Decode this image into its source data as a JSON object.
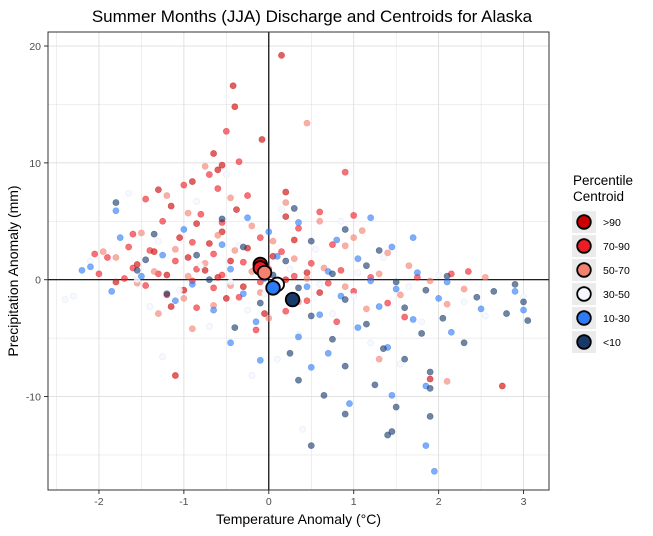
{
  "chart_data": {
    "type": "scatter",
    "title": "Summer Months (JJA) Discharge and Centroids for Alaska",
    "xlabel": "Temperature Anomaly (°C)",
    "ylabel": "Precipitation Anomaly (mm)",
    "xlim": [
      -2.6,
      3.3
    ],
    "ylim": [
      -18.0,
      21.2
    ],
    "xticks": [
      -2,
      -1,
      0,
      1,
      2,
      3
    ],
    "yticks": [
      -10,
      0,
      10,
      20
    ],
    "grid": true,
    "reference_lines": {
      "x": 0,
      "y": 0
    },
    "legend": {
      "title": "Percentile\nCentroid",
      "placement": "right",
      "entries": [
        {
          "label": ">90",
          "color": "#cc0000"
        },
        {
          "label": "70-90",
          "color": "#ee1c25"
        },
        {
          "label": "50-70",
          "color": "#f4806f"
        },
        {
          "label": "30-50",
          "color": "#f5f8ff"
        },
        {
          "label": "10-30",
          "color": "#2e7bf6"
        },
        {
          "label": "<10",
          "color": "#173a6b"
        }
      ]
    },
    "series": [
      {
        "name": ">90",
        "color": "#cc0000",
        "centroid": {
          "x": -0.1,
          "y": 1.3
        },
        "points": [
          [
            0.15,
            19.2
          ],
          [
            -0.42,
            16.6
          ],
          [
            -0.4,
            14.8
          ],
          [
            -0.08,
            12.0
          ],
          [
            -0.55,
            9.8
          ],
          [
            -0.6,
            9.4
          ],
          [
            -0.9,
            8.4
          ],
          [
            -1.3,
            7.7
          ],
          [
            -1.15,
            6.3
          ],
          [
            -0.38,
            6.0
          ],
          [
            0.2,
            5.4
          ],
          [
            -0.85,
            4.8
          ],
          [
            -0.55,
            4.1
          ],
          [
            -1.05,
            3.6
          ],
          [
            -0.7,
            3.1
          ],
          [
            -0.25,
            2.7
          ],
          [
            -1.35,
            2.4
          ],
          [
            0.05,
            2.0
          ],
          [
            -0.95,
            1.9
          ],
          [
            -0.45,
            1.6
          ],
          [
            -1.55,
            1.3
          ],
          [
            -0.15,
            1.0
          ],
          [
            -0.75,
            0.8
          ],
          [
            0.45,
            0.6
          ],
          [
            -1.2,
            0.4
          ],
          [
            -0.6,
            0.2
          ],
          [
            0.2,
            0.0
          ],
          [
            -1.8,
            -0.2
          ],
          [
            -0.3,
            -0.6
          ],
          [
            -1.0,
            -0.9
          ],
          [
            0.6,
            -1.1
          ],
          [
            -0.5,
            -1.6
          ],
          [
            -1.15,
            -2.3
          ],
          [
            -0.05,
            -2.9
          ],
          [
            0.3,
            3.4
          ],
          [
            -1.1,
            -8.2
          ],
          [
            2.75,
            -9.1
          ],
          [
            1.9,
            -8.5
          ],
          [
            0.2,
            7.5
          ],
          [
            -0.65,
            10.8
          ]
        ]
      },
      {
        "name": "70-90",
        "color": "#ee1c25",
        "centroid": {
          "x": -0.1,
          "y": 1.0
        },
        "points": [
          [
            -0.5,
            12.7
          ],
          [
            -0.35,
            10.1
          ],
          [
            -0.7,
            9.0
          ],
          [
            -1.0,
            8.1
          ],
          [
            -1.45,
            6.9
          ],
          [
            0.9,
            9.2
          ],
          [
            -0.25,
            7.2
          ],
          [
            -0.8,
            5.6
          ],
          [
            -1.25,
            5.0
          ],
          [
            0.35,
            4.4
          ],
          [
            -0.55,
            4.9
          ],
          [
            -1.6,
            3.9
          ],
          [
            -0.9,
            3.2
          ],
          [
            -0.1,
            3.6
          ],
          [
            0.75,
            3.0
          ],
          [
            -1.4,
            2.5
          ],
          [
            -0.65,
            2.2
          ],
          [
            0.15,
            2.4
          ],
          [
            -1.9,
            1.9
          ],
          [
            -1.1,
            1.6
          ],
          [
            -0.3,
            1.5
          ],
          [
            0.5,
            1.4
          ],
          [
            -1.6,
            1.0
          ],
          [
            -0.85,
            0.9
          ],
          [
            0.0,
            0.9
          ],
          [
            0.85,
            0.8
          ],
          [
            -2.0,
            0.5
          ],
          [
            -1.3,
            0.5
          ],
          [
            -0.55,
            0.4
          ],
          [
            0.3,
            0.3
          ],
          [
            1.2,
            0.2
          ],
          [
            -1.7,
            0.1
          ],
          [
            -0.9,
            -0.1
          ],
          [
            -0.1,
            -0.2
          ],
          [
            0.7,
            -0.3
          ],
          [
            -1.45,
            -0.5
          ],
          [
            -0.65,
            -0.7
          ],
          [
            0.1,
            -0.9
          ],
          [
            1.0,
            -1.0
          ],
          [
            -1.2,
            -1.3
          ],
          [
            -0.35,
            -1.5
          ],
          [
            0.45,
            -1.8
          ],
          [
            1.4,
            -2.0
          ],
          [
            -0.85,
            -2.4
          ],
          [
            0.2,
            -2.7
          ],
          [
            1.6,
            -3.2
          ],
          [
            0.8,
            -3.6
          ],
          [
            -0.15,
            -4.3
          ],
          [
            -1.65,
            2.8
          ],
          [
            -2.05,
            2.2
          ],
          [
            0.6,
            5.8
          ],
          [
            1.0,
            5.5
          ],
          [
            -0.6,
            7.8
          ],
          [
            2.15,
            0.5
          ],
          [
            1.75,
            0.2
          ],
          [
            2.35,
            0.7
          ]
        ]
      },
      {
        "name": "50-70",
        "color": "#f4806f",
        "centroid": {
          "x": -0.05,
          "y": 0.6
        },
        "points": [
          [
            0.45,
            13.4
          ],
          [
            -0.75,
            9.7
          ],
          [
            -1.2,
            7.2
          ],
          [
            -0.45,
            7.0
          ],
          [
            0.2,
            6.6
          ],
          [
            -0.95,
            5.7
          ],
          [
            0.6,
            5.0
          ],
          [
            -0.2,
            4.6
          ],
          [
            1.1,
            4.2
          ],
          [
            -1.5,
            4.0
          ],
          [
            -0.6,
            3.8
          ],
          [
            0.05,
            3.3
          ],
          [
            0.9,
            2.9
          ],
          [
            -1.1,
            2.6
          ],
          [
            -0.4,
            2.5
          ],
          [
            1.4,
            2.3
          ],
          [
            -1.8,
            1.9
          ],
          [
            0.3,
            1.8
          ],
          [
            -0.75,
            1.4
          ],
          [
            1.65,
            1.2
          ],
          [
            0.65,
            1.0
          ],
          [
            -1.35,
            0.7
          ],
          [
            -0.2,
            0.7
          ],
          [
            1.3,
            0.5
          ],
          [
            -0.95,
            0.3
          ],
          [
            0.45,
            0.1
          ],
          [
            1.9,
            -0.1
          ],
          [
            -1.55,
            -0.3
          ],
          [
            -0.45,
            -0.5
          ],
          [
            0.9,
            -0.6
          ],
          [
            -0.1,
            -1.1
          ],
          [
            1.55,
            -1.3
          ],
          [
            -1.0,
            -1.6
          ],
          [
            0.35,
            -1.9
          ],
          [
            -0.65,
            -2.2
          ],
          [
            1.15,
            -2.5
          ],
          [
            -1.3,
            -2.9
          ],
          [
            0.0,
            -3.3
          ],
          [
            2.1,
            -2.1
          ],
          [
            -0.9,
            -4.2
          ],
          [
            2.3,
            -0.8
          ],
          [
            2.55,
            0.2
          ],
          [
            1.0,
            3.6
          ],
          [
            -1.95,
            2.4
          ],
          [
            2.1,
            -8.7
          ],
          [
            1.3,
            -6.8
          ]
        ]
      },
      {
        "name": "30-50",
        "color": "#f5f8ff",
        "centroid": {
          "x": 0.1,
          "y": -0.4
        },
        "points": [
          [
            -1.65,
            7.4
          ],
          [
            -0.85,
            6.7
          ],
          [
            0.15,
            6.0
          ],
          [
            0.85,
            5.0
          ],
          [
            -1.3,
            3.3
          ],
          [
            -0.35,
            2.9
          ],
          [
            0.55,
            2.6
          ],
          [
            1.35,
            1.9
          ],
          [
            -2.1,
            1.6
          ],
          [
            -0.8,
            1.2
          ],
          [
            0.25,
            0.9
          ],
          [
            1.05,
            0.6
          ],
          [
            2.0,
            0.4
          ],
          [
            -1.55,
            0.0
          ],
          [
            -0.45,
            -0.2
          ],
          [
            0.6,
            -0.4
          ],
          [
            1.65,
            -0.6
          ],
          [
            -2.3,
            -1.4
          ],
          [
            -1.05,
            -0.9
          ],
          [
            -0.05,
            -1.2
          ],
          [
            1.0,
            -1.4
          ],
          [
            2.3,
            -1.9
          ],
          [
            -1.4,
            -2.3
          ],
          [
            -0.25,
            -2.6
          ],
          [
            0.75,
            -2.9
          ],
          [
            1.8,
            -3.6
          ],
          [
            -0.7,
            -4.0
          ],
          [
            0.35,
            -4.7
          ],
          [
            1.2,
            -5.4
          ],
          [
            -1.25,
            -6.6
          ],
          [
            0.1,
            -6.8
          ],
          [
            2.55,
            -3.1
          ],
          [
            3.0,
            -1.5
          ],
          [
            0.4,
            -12.8
          ],
          [
            -0.2,
            -8.2
          ],
          [
            1.55,
            -7.2
          ],
          [
            -2.4,
            -1.7
          ],
          [
            -0.5,
            9.0
          ]
        ]
      },
      {
        "name": "10-30",
        "color": "#2e7bf6",
        "centroid": {
          "x": 0.05,
          "y": -0.7
        },
        "points": [
          [
            -1.8,
            5.9
          ],
          [
            -0.25,
            5.3
          ],
          [
            0.35,
            4.9
          ],
          [
            1.2,
            5.3
          ],
          [
            -1.0,
            4.3
          ],
          [
            0.0,
            4.1
          ],
          [
            -1.75,
            3.6
          ],
          [
            0.8,
            3.4
          ],
          [
            -0.55,
            3.0
          ],
          [
            1.45,
            2.8
          ],
          [
            -1.25,
            2.1
          ],
          [
            0.1,
            2.0
          ],
          [
            1.05,
            1.8
          ],
          [
            -2.1,
            1.1
          ],
          [
            -0.45,
            0.9
          ],
          [
            0.7,
            0.7
          ],
          [
            1.75,
            0.6
          ],
          [
            -1.5,
            0.3
          ],
          [
            -0.05,
            0.1
          ],
          [
            1.2,
            -0.1
          ],
          [
            2.1,
            -0.2
          ],
          [
            -0.9,
            -0.4
          ],
          [
            0.45,
            -0.6
          ],
          [
            1.5,
            -0.8
          ],
          [
            -1.85,
            -1.0
          ],
          [
            -0.3,
            -1.2
          ],
          [
            0.85,
            -1.4
          ],
          [
            2.0,
            -1.6
          ],
          [
            -1.1,
            -1.8
          ],
          [
            0.25,
            -2.0
          ],
          [
            1.3,
            -2.3
          ],
          [
            2.5,
            -2.5
          ],
          [
            -0.65,
            -2.6
          ],
          [
            0.6,
            -3.0
          ],
          [
            1.7,
            -3.4
          ],
          [
            -0.15,
            -3.6
          ],
          [
            1.05,
            -4.1
          ],
          [
            2.15,
            -4.5
          ],
          [
            0.35,
            -4.9
          ],
          [
            -0.45,
            -5.4
          ],
          [
            1.4,
            -5.8
          ],
          [
            0.7,
            -6.3
          ],
          [
            -0.1,
            -6.9
          ],
          [
            0.5,
            -7.5
          ],
          [
            1.85,
            -9.1
          ],
          [
            1.85,
            -14.2
          ],
          [
            1.95,
            -16.4
          ],
          [
            1.45,
            -9.9
          ],
          [
            3.0,
            -2.6
          ],
          [
            2.9,
            -1.0
          ],
          [
            1.7,
            3.6
          ],
          [
            -2.2,
            0.8
          ],
          [
            0.95,
            -10.6
          ]
        ]
      },
      {
        "name": "<10",
        "color": "#173a6b",
        "centroid": {
          "x": 0.28,
          "y": -1.7
        },
        "points": [
          [
            -1.8,
            6.6
          ],
          [
            0.3,
            6.1
          ],
          [
            -0.55,
            5.2
          ],
          [
            0.9,
            4.3
          ],
          [
            -1.35,
            3.9
          ],
          [
            0.5,
            3.3
          ],
          [
            -0.3,
            2.8
          ],
          [
            1.3,
            2.5
          ],
          [
            -0.85,
            2.1
          ],
          [
            0.2,
            1.6
          ],
          [
            1.15,
            1.2
          ],
          [
            -1.55,
            0.8
          ],
          [
            0.75,
            0.5
          ],
          [
            2.1,
            0.3
          ],
          [
            -0.7,
            0.0
          ],
          [
            1.5,
            -0.2
          ],
          [
            2.9,
            -0.4
          ],
          [
            0.35,
            -0.7
          ],
          [
            1.85,
            -0.9
          ],
          [
            -1.2,
            -1.2
          ],
          [
            2.45,
            -1.5
          ],
          [
            0.9,
            -1.7
          ],
          [
            -0.1,
            -2.0
          ],
          [
            1.6,
            -2.4
          ],
          [
            2.8,
            -2.9
          ],
          [
            0.5,
            -3.1
          ],
          [
            2.05,
            -3.3
          ],
          [
            1.15,
            -3.8
          ],
          [
            -0.4,
            -4.1
          ],
          [
            1.8,
            -4.6
          ],
          [
            0.75,
            -5.1
          ],
          [
            2.3,
            -5.4
          ],
          [
            1.35,
            -5.9
          ],
          [
            0.25,
            -6.3
          ],
          [
            1.6,
            -6.8
          ],
          [
            0.9,
            -7.4
          ],
          [
            1.9,
            -7.9
          ],
          [
            0.35,
            -8.6
          ],
          [
            1.25,
            -9.0
          ],
          [
            1.9,
            -9.3
          ],
          [
            0.65,
            -9.9
          ],
          [
            1.5,
            -10.9
          ],
          [
            1.9,
            -11.7
          ],
          [
            0.9,
            -11.5
          ],
          [
            1.45,
            -13.0
          ],
          [
            1.4,
            -13.3
          ],
          [
            0.5,
            -14.2
          ],
          [
            3.05,
            -3.5
          ],
          [
            2.65,
            -1.0
          ],
          [
            3.0,
            -1.9
          ],
          [
            -1.45,
            1.7
          ],
          [
            0.05,
            0.4
          ]
        ]
      }
    ]
  }
}
